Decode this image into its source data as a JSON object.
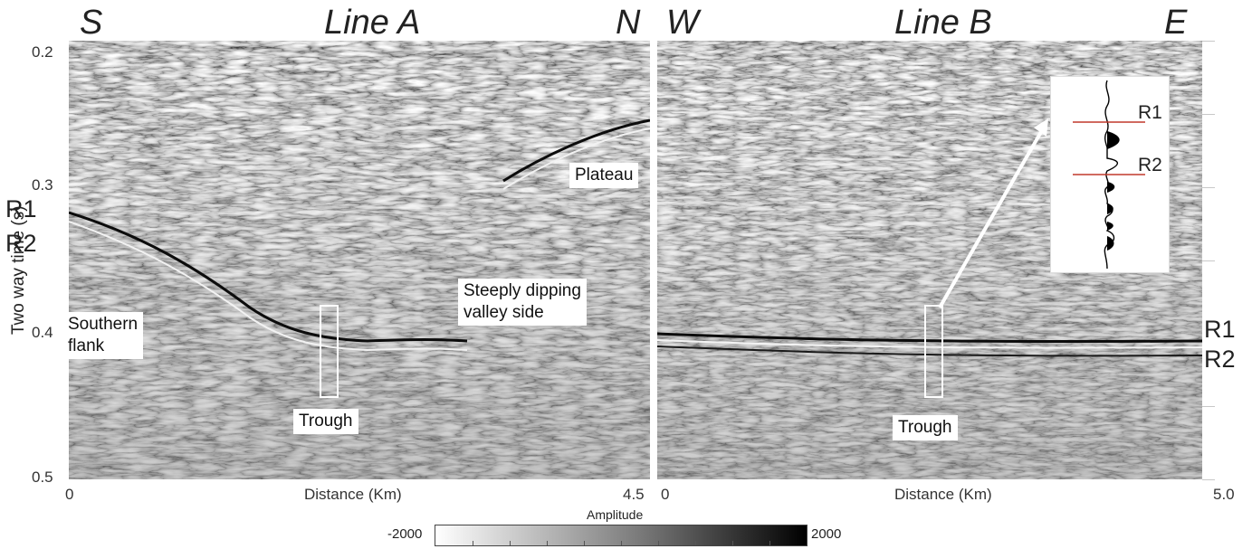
{
  "line_a": {
    "title": "Line A",
    "left_dir": "S",
    "right_dir": "N",
    "x_start": "0",
    "x_end": "4.5",
    "x_label": "Distance (Km)",
    "left_reflectors": [
      "R1",
      "R2"
    ],
    "notes": {
      "southern_flank": "Southern\nflank",
      "trough": "Trough",
      "steep_side": "Steeply dipping\nvalley side",
      "plateau": "Plateau"
    }
  },
  "line_b": {
    "title": "Line B",
    "left_dir": "W",
    "right_dir": "E",
    "x_start": "0",
    "x_end": "5.0",
    "x_label": "Distance (Km)",
    "right_reflectors": [
      "R1",
      "R2"
    ],
    "notes": {
      "trough": "Trough"
    },
    "inset": {
      "labels": [
        "R1",
        "R2"
      ],
      "marker_color": "#c0392b"
    }
  },
  "y_axis": {
    "label": "Two way time (s)",
    "ticks": [
      "0.2",
      "0.3",
      "0.4",
      "0.5"
    ]
  },
  "colorbar": {
    "title": "Amplitude",
    "min": "-2000",
    "max": "2000"
  }
}
